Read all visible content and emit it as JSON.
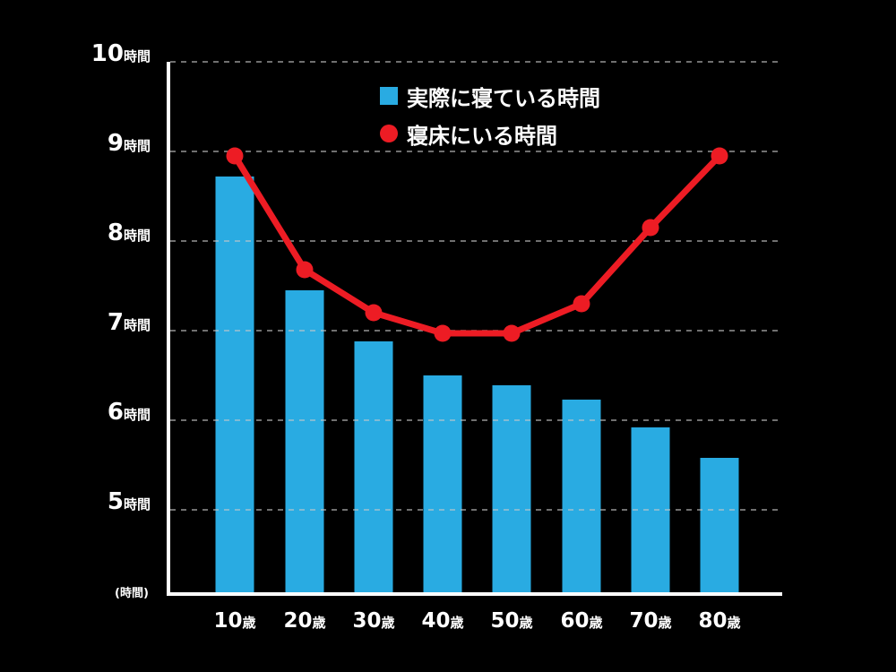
{
  "chart_data": {
    "type": "bar",
    "title": "",
    "xlabel": "",
    "ylabel": "(時間)",
    "ylim": [
      4.07,
      10
    ],
    "grid": true,
    "legend_position": "top-center-inside",
    "categories": [
      "10歳",
      "20歳",
      "30歳",
      "40歳",
      "50歳",
      "60歳",
      "70歳",
      "80歳"
    ],
    "series": [
      {
        "name": "実際に寝ている時間",
        "type": "bar",
        "color": "#29abe2",
        "values": [
          8.72,
          7.45,
          6.88,
          6.5,
          6.39,
          6.23,
          5.92,
          5.58
        ]
      },
      {
        "name": "寝床にいる時間",
        "type": "line",
        "color": "#ed1c24",
        "values": [
          8.95,
          7.68,
          7.2,
          6.97,
          6.97,
          7.3,
          8.15,
          8.95
        ]
      }
    ],
    "yticks": [
      5,
      6,
      7,
      8,
      9,
      10
    ]
  },
  "axis": {
    "y_ticks": [
      {
        "num": "10",
        "unit": "時間"
      },
      {
        "num": "9",
        "unit": "時間"
      },
      {
        "num": "8",
        "unit": "時間"
      },
      {
        "num": "7",
        "unit": "時間"
      },
      {
        "num": "6",
        "unit": "時間"
      },
      {
        "num": "5",
        "unit": "時間"
      }
    ],
    "y_unit": "(時間)",
    "x_ticks": [
      {
        "num": "10",
        "unit": "歳"
      },
      {
        "num": "20",
        "unit": "歳"
      },
      {
        "num": "30",
        "unit": "歳"
      },
      {
        "num": "40",
        "unit": "歳"
      },
      {
        "num": "50",
        "unit": "歳"
      },
      {
        "num": "60",
        "unit": "歳"
      },
      {
        "num": "70",
        "unit": "歳"
      },
      {
        "num": "80",
        "unit": "歳"
      }
    ]
  },
  "legend": {
    "items": [
      {
        "label": "実際に寝ている時間",
        "marker": "square"
      },
      {
        "label": "寝床にいる時間",
        "marker": "circle"
      }
    ]
  }
}
